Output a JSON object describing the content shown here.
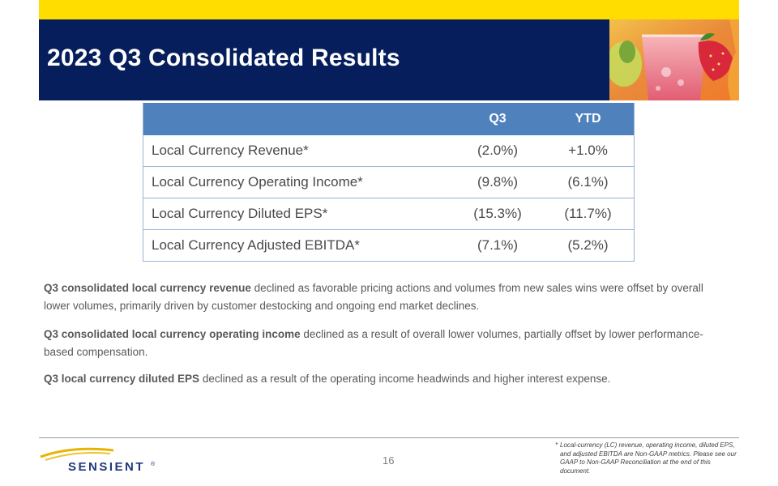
{
  "slide": {
    "title": "2023 Q3 Consolidated Results",
    "page_number": "16"
  },
  "table": {
    "headers": [
      "",
      "Q3",
      "YTD"
    ],
    "rows": [
      {
        "label": "Local Currency Revenue*",
        "q3": "(2.0%)",
        "ytd": "+1.0%"
      },
      {
        "label": "Local Currency Operating Income*",
        "q3": "(9.8%)",
        "ytd": "(6.1%)"
      },
      {
        "label": "Local Currency Diluted EPS*",
        "q3": "(15.3%)",
        "ytd": "(11.7%)"
      },
      {
        "label": "Local Currency Adjusted EBITDA*",
        "q3": "(7.1%)",
        "ytd": "(5.2%)"
      }
    ]
  },
  "paragraphs": [
    {
      "bold": "Q3 consolidated local currency revenue",
      "text": " declined as favorable pricing actions and volumes from new sales wins were offset by overall lower volumes, primarily driven by customer destocking and ongoing end market declines."
    },
    {
      "bold": "Q3 consolidated local currency operating income",
      "text": " declined as a result of overall lower volumes, partially offset by lower performance-based compensation."
    },
    {
      "bold": "Q3 local currency diluted EPS",
      "text": " declined as a result of the operating income headwinds and higher interest expense."
    }
  ],
  "footnote": {
    "mark": "*",
    "text": "Local-currency (LC) revenue, operating income, diluted EPS, and adjusted EBITDA are Non-GAAP metrics. Please see our GAAP to Non-GAAP Reconciliation at the end of this document."
  },
  "logo": {
    "text": "SENSIENT",
    "registered": "®"
  },
  "colors": {
    "header_bg": "#061f5c",
    "accent_yellow": "#ffdd00",
    "table_header": "#4f81bd",
    "logo_blue": "#1f3a7a",
    "logo_gold": "#e8b400"
  },
  "icons": {
    "header_photo": "beverage-photo",
    "logo_mark": "swoosh-logo"
  }
}
